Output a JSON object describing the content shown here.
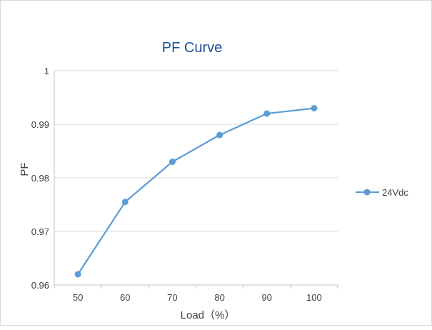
{
  "chart_data": {
    "type": "line",
    "title": "PF Curve",
    "xlabel": "Load（%）",
    "ylabel": "PF",
    "x": [
      50,
      60,
      70,
      80,
      90,
      100
    ],
    "series": [
      {
        "name": "24Vdc",
        "values": [
          0.962,
          0.9755,
          0.983,
          0.988,
          0.992,
          0.993
        ]
      }
    ],
    "ylim": [
      0.96,
      1
    ],
    "y_ticks": [
      "0.96",
      "0.97",
      "0.98",
      "0.99",
      "1"
    ],
    "x_ticks": [
      "50",
      "60",
      "70",
      "80",
      "90",
      "100"
    ],
    "grid": true,
    "legend": "right",
    "colors": {
      "series": "#5b9bd5",
      "grid": "#d9d9d9",
      "axis": "#bfbfbf",
      "title": "#1f4e9a",
      "text": "#404040"
    }
  }
}
